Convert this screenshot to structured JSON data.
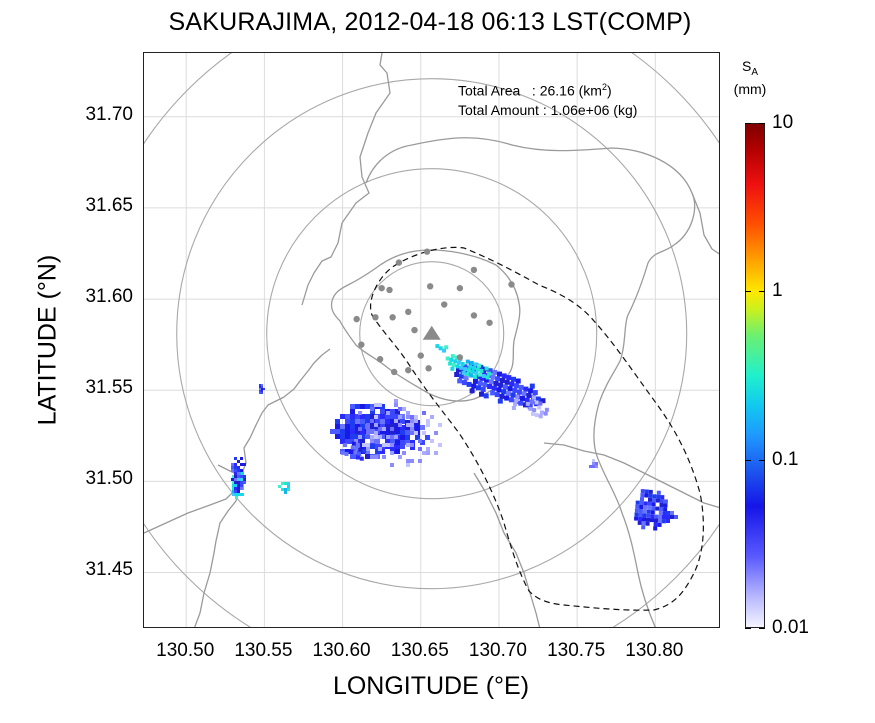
{
  "title": "SAKURAJIMA, 2012-04-18 06:13 LST(COMP)",
  "stats": {
    "area_label": "Total Area   : 26.16 (km",
    "area_sup": "2",
    "area_end": ")",
    "amount_label": "Total Amount : 1.06e+06 (kg)"
  },
  "axes": {
    "xlabel": "LONGITUDE (°E)",
    "ylabel": "LATITUDE (°N)",
    "xticks": [
      "130.50",
      "130.55",
      "130.60",
      "130.65",
      "130.70",
      "130.75",
      "130.80"
    ],
    "yticks": [
      "31.70",
      "31.65",
      "31.60",
      "31.55",
      "31.50",
      "31.45"
    ],
    "xrange": [
      130.473,
      130.842
    ],
    "yrange": [
      31.419,
      31.735
    ]
  },
  "colorbar": {
    "title_main": "S",
    "title_sub": "A",
    "unit": "(mm)",
    "labels": [
      "10",
      "1",
      "0.1",
      "0.01"
    ],
    "scale": "log"
  },
  "map": {
    "vent": {
      "lon": 130.657,
      "lat": 31.581
    },
    "rings_center": {
      "lon": 130.657,
      "lat": 31.581
    },
    "stations": [
      [
        130.654,
        31.626
      ],
      [
        130.684,
        31.616
      ],
      [
        130.636,
        31.62
      ],
      [
        130.625,
        31.606
      ],
      [
        130.63,
        31.605
      ],
      [
        130.656,
        31.607
      ],
      [
        130.665,
        31.597
      ],
      [
        130.675,
        31.606
      ],
      [
        130.708,
        31.608
      ],
      [
        130.621,
        31.59
      ],
      [
        130.632,
        31.59
      ],
      [
        130.642,
        31.593
      ],
      [
        130.646,
        31.583
      ],
      [
        130.609,
        31.589
      ],
      [
        130.694,
        31.587
      ],
      [
        130.684,
        31.591
      ],
      [
        130.612,
        31.575
      ],
      [
        130.624,
        31.567
      ],
      [
        130.65,
        31.569
      ],
      [
        130.675,
        31.568
      ],
      [
        130.633,
        31.56
      ],
      [
        130.642,
        31.561
      ],
      [
        130.655,
        31.562
      ]
    ],
    "colors": {
      "grid": "#dcdcdc",
      "coast": "#9a9a9a",
      "rings": "#a8a8a8",
      "stations": "#8a8a8a",
      "dashed": "#111111"
    }
  }
}
